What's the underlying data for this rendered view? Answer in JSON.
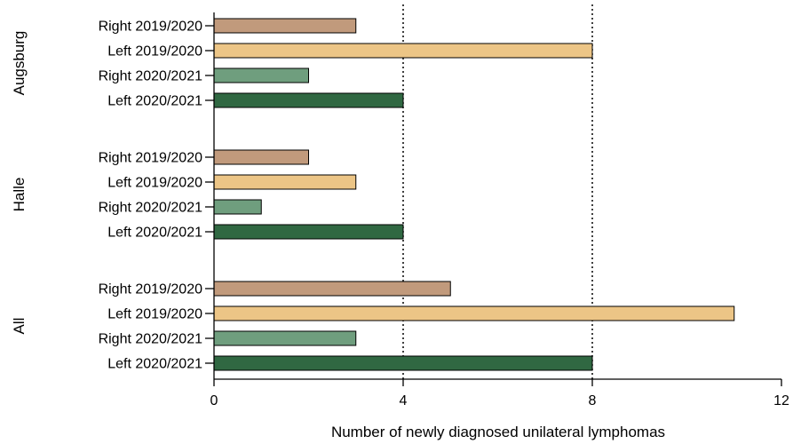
{
  "chart_data": {
    "type": "bar",
    "orientation": "horizontal",
    "xlabel": "Number of newly diagnosed unilateral lymphomas",
    "xlim": [
      0,
      12
    ],
    "xticks": [
      "0",
      "4",
      "8",
      "12"
    ],
    "reference_lines": [
      4,
      8
    ],
    "groups": [
      {
        "name": "Augsburg",
        "bars": [
          {
            "label": "Right 2019/2020",
            "value": 3
          },
          {
            "label": "Left 2019/2020",
            "value": 8
          },
          {
            "label": "Right 2020/2021",
            "value": 2
          },
          {
            "label": "Left 2020/2021",
            "value": 4
          }
        ]
      },
      {
        "name": "Halle",
        "bars": [
          {
            "label": "Right 2019/2020",
            "value": 2
          },
          {
            "label": "Left 2019/2020",
            "value": 3
          },
          {
            "label": "Right 2020/2021",
            "value": 1
          },
          {
            "label": "Left 2020/2021",
            "value": 4
          }
        ]
      },
      {
        "name": "All",
        "bars": [
          {
            "label": "Right 2019/2020",
            "value": 5
          },
          {
            "label": "Left 2019/2020",
            "value": 11
          },
          {
            "label": "Right 2020/2021",
            "value": 3
          },
          {
            "label": "Left 2020/2021",
            "value": 8
          }
        ]
      }
    ],
    "bar_colors": [
      "#c19a7c",
      "#ecc586",
      "#6f9e7e",
      "#306842"
    ]
  }
}
